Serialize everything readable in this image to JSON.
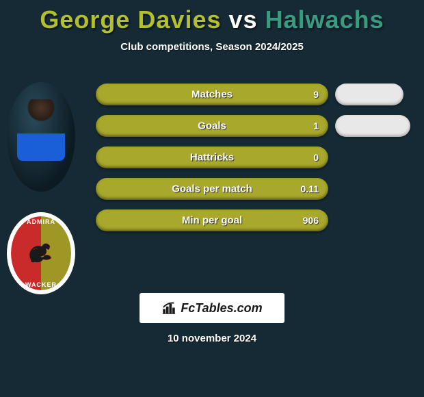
{
  "title": {
    "player_a": "George Davies",
    "vs": "vs",
    "player_b": "Halwachs",
    "color_a": "#b3bf2e",
    "color_vs": "#ffffff",
    "color_b": "#3a9a82"
  },
  "subtitle": "Club competitions, Season 2024/2025",
  "bar_color": "#a8a82c",
  "bar_label_color": "#ffffff",
  "background_color": "#152a34",
  "stats": [
    {
      "label": "Matches",
      "value": "9"
    },
    {
      "label": "Goals",
      "value": "1"
    },
    {
      "label": "Hattricks",
      "value": "0"
    },
    {
      "label": "Goals per match",
      "value": "0.11"
    },
    {
      "label": "Min per goal",
      "value": "906"
    }
  ],
  "pills": [
    {
      "visible": true,
      "size": "small"
    },
    {
      "visible": true,
      "size": "wide"
    },
    {
      "visible": false
    },
    {
      "visible": false
    },
    {
      "visible": false
    }
  ],
  "badge_a": {
    "shape": "player-photo"
  },
  "badge_b": {
    "text_top": "ADMIRA",
    "text_bottom": "WACKER",
    "left_color": "#c92a2a",
    "right_color": "#9e9625"
  },
  "logo_text": "FcTables.com",
  "date": "10 november 2024"
}
